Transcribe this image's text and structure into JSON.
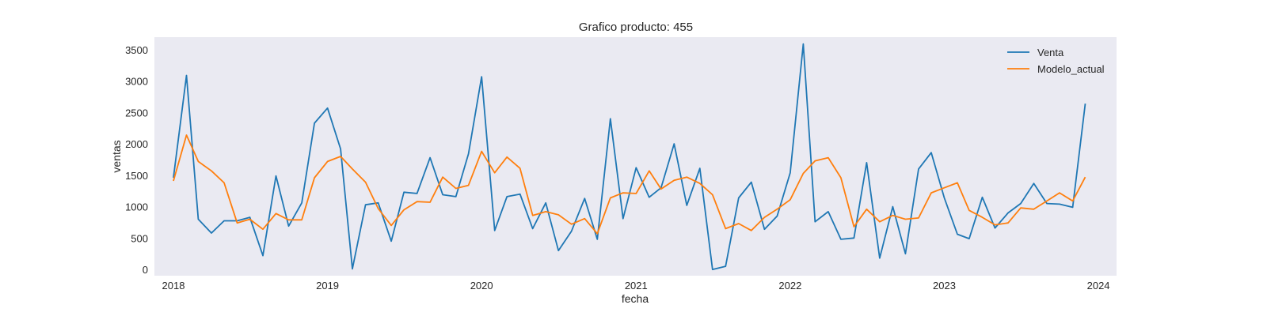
{
  "chart_data": {
    "type": "line",
    "title": "Grafico producto: 455",
    "xlabel": "fecha",
    "ylabel": "ventas",
    "x_ticks": [
      "2018",
      "2019",
      "2020",
      "2021",
      "2022",
      "2023",
      "2024"
    ],
    "y_ticks": [
      "0",
      "500",
      "1000",
      "1500",
      "2000",
      "2500",
      "3000",
      "3500"
    ],
    "ylim": [
      -100,
      3700
    ],
    "xlim": [
      "2017-11-17",
      "2024-02-13"
    ],
    "grid": false,
    "legend_position": "top-right",
    "x": [
      "2018-01-01",
      "2018-02-01",
      "2018-03-01",
      "2018-04-01",
      "2018-05-01",
      "2018-06-01",
      "2018-07-01",
      "2018-08-01",
      "2018-09-01",
      "2018-10-01",
      "2018-11-01",
      "2018-12-01",
      "2019-01-01",
      "2019-02-01",
      "2019-03-01",
      "2019-04-01",
      "2019-05-01",
      "2019-06-01",
      "2019-07-01",
      "2019-08-01",
      "2019-09-01",
      "2019-10-01",
      "2019-11-01",
      "2019-12-01",
      "2020-01-01",
      "2020-02-01",
      "2020-03-01",
      "2020-04-01",
      "2020-05-01",
      "2020-06-01",
      "2020-07-01",
      "2020-08-01",
      "2020-09-01",
      "2020-10-01",
      "2020-11-01",
      "2020-12-01",
      "2021-01-01",
      "2021-02-01",
      "2021-03-01",
      "2021-04-01",
      "2021-05-01",
      "2021-06-01",
      "2021-07-01",
      "2021-08-01",
      "2021-09-01",
      "2021-10-01",
      "2021-11-01",
      "2021-12-01",
      "2022-01-01",
      "2022-02-01",
      "2022-03-01",
      "2022-04-01",
      "2022-05-01",
      "2022-06-01",
      "2022-07-01",
      "2022-08-01",
      "2022-09-01",
      "2022-10-01",
      "2022-11-01",
      "2022-12-01",
      "2023-01-01",
      "2023-02-01",
      "2023-03-01",
      "2023-04-01",
      "2023-05-01",
      "2023-06-01",
      "2023-07-01",
      "2023-08-01",
      "2023-09-01",
      "2023-10-01",
      "2023-11-01",
      "2023-12-01"
    ],
    "series": [
      {
        "name": "Venta",
        "color": "#1f77b4",
        "values": [
          1460,
          3090,
          800,
          580,
          775,
          775,
          830,
          220,
          1490,
          690,
          1060,
          2330,
          2570,
          1920,
          10,
          1030,
          1060,
          450,
          1230,
          1210,
          1780,
          1190,
          1160,
          1840,
          3070,
          620,
          1160,
          1200,
          650,
          1060,
          300,
          610,
          1130,
          480,
          2400,
          810,
          1620,
          1150,
          1300,
          2000,
          1020,
          1610,
          0,
          50,
          1140,
          1390,
          640,
          850,
          1540,
          3590,
          760,
          920,
          480,
          500,
          1700,
          180,
          1000,
          250,
          1600,
          1860,
          1140,
          560,
          490,
          1150,
          660,
          900,
          1050,
          1370,
          1050,
          1040,
          990,
          2640
        ]
      },
      {
        "name": "Modelo_actual",
        "color": "#ff7f0e",
        "values": [
          1410,
          2140,
          1720,
          1570,
          1380,
          740,
          800,
          640,
          890,
          790,
          790,
          1460,
          1720,
          1800,
          1600,
          1390,
          970,
          700,
          950,
          1080,
          1070,
          1470,
          1290,
          1340,
          1880,
          1540,
          1790,
          1610,
          860,
          920,
          870,
          720,
          810,
          570,
          1140,
          1220,
          1210,
          1570,
          1280,
          1420,
          1470,
          1370,
          1190,
          650,
          730,
          620,
          830,
          960,
          1110,
          1530,
          1730,
          1780,
          1460,
          680,
          960,
          760,
          860,
          800,
          820,
          1220,
          1300,
          1380,
          940,
          830,
          710,
          740,
          980,
          960,
          1090,
          1220,
          1090,
          1470
        ]
      }
    ]
  }
}
